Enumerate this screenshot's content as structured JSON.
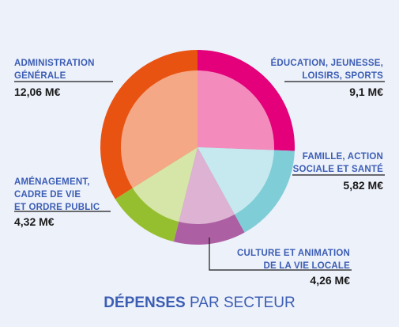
{
  "chart_data": {
    "type": "pie",
    "unit": "M€",
    "slices": [
      {
        "label": "ÉDUCATION, JEUNESSE,\nLOISIRS, SPORTS",
        "value": 9.1,
        "display": "9,1 M€",
        "color_outer": "#e3007a",
        "color_inner": "#f38cbd"
      },
      {
        "label": "FAMILLE, ACTION\nSOCIALE ET SANTÉ",
        "value": 5.82,
        "display": "5,82 M€",
        "color_outer": "#7fcdd7",
        "color_inner": "#c5e9ee"
      },
      {
        "label": "CULTURE ET ANIMATION\nDE LA VIE LOCALE",
        "value": 4.26,
        "display": "4,26 M€",
        "color_outer": "#ac5fa2",
        "color_inner": "#ddb2d2"
      },
      {
        "label": "AMÉNAGEMENT,\nCADRE DE VIE\nET ORDRE PUBLIC",
        "value": 4.32,
        "display": "4,32 M€",
        "color_outer": "#96bf2f",
        "color_inner": "#d5e6a8"
      },
      {
        "label": "ADMINISTRATION\nGÉNÉRALE",
        "value": 12.06,
        "display": "12,06 M€",
        "color_outer": "#e85312",
        "color_inner": "#f4a885"
      }
    ],
    "title_bold": "DÉPENSES",
    "title_rest": "PAR SECTEUR"
  },
  "colors": {
    "background": "#edf1fa",
    "label_text": "#3b5db4",
    "value_text": "#1a1a1a",
    "leader_line": "#1a1a1a"
  }
}
